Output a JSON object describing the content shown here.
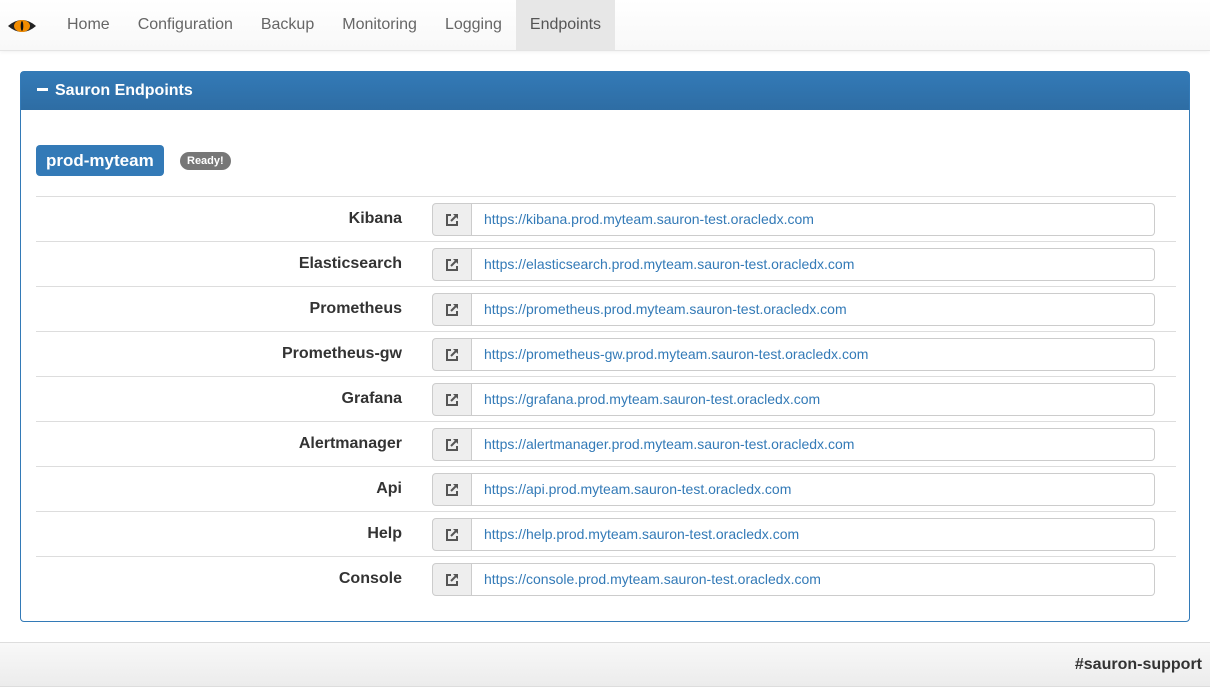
{
  "nav": {
    "tabs": [
      "Home",
      "Configuration",
      "Backup",
      "Monitoring",
      "Logging",
      "Endpoints"
    ],
    "active": "Endpoints"
  },
  "panel": {
    "title": "Sauron Endpoints",
    "environment": "prod-myteam",
    "status": "Ready!"
  },
  "endpoints": [
    {
      "name": "Kibana",
      "url": "https://kibana.prod.myteam.sauron-test.oracledx.com"
    },
    {
      "name": "Elasticsearch",
      "url": "https://elasticsearch.prod.myteam.sauron-test.oracledx.com"
    },
    {
      "name": "Prometheus",
      "url": "https://prometheus.prod.myteam.sauron-test.oracledx.com"
    },
    {
      "name": "Prometheus-gw",
      "url": "https://prometheus-gw.prod.myteam.sauron-test.oracledx.com"
    },
    {
      "name": "Grafana",
      "url": "https://grafana.prod.myteam.sauron-test.oracledx.com"
    },
    {
      "name": "Alertmanager",
      "url": "https://alertmanager.prod.myteam.sauron-test.oracledx.com"
    },
    {
      "name": "Api",
      "url": "https://api.prod.myteam.sauron-test.oracledx.com"
    },
    {
      "name": "Help",
      "url": "https://help.prod.myteam.sauron-test.oracledx.com"
    },
    {
      "name": "Console",
      "url": "https://console.prod.myteam.sauron-test.oracledx.com"
    }
  ],
  "footer": {
    "text": "#sauron-support"
  },
  "colors": {
    "primary": "#337ab7",
    "badge": "#777777",
    "eye": "#f28c00"
  }
}
